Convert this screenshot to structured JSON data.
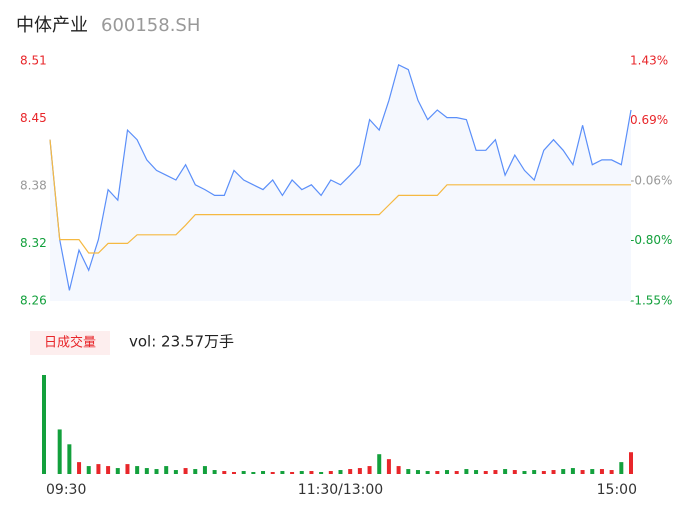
{
  "header": {
    "name": "中体产业",
    "code": "600158.SH"
  },
  "chart_data": [
    {
      "type": "line",
      "x": [
        0,
        4,
        8,
        12,
        16,
        20,
        24,
        28,
        32,
        36,
        40,
        44,
        48,
        52,
        56,
        60,
        64,
        68,
        72,
        76,
        80,
        84,
        88,
        92,
        96,
        100,
        104,
        108,
        112,
        116,
        120,
        124,
        128,
        132,
        136,
        140,
        144,
        148,
        152,
        156,
        160,
        164,
        168,
        172,
        176,
        180,
        184,
        188,
        192,
        196,
        200,
        204,
        208,
        212,
        216,
        220,
        224,
        228,
        232,
        236,
        240
      ],
      "xlim": [
        0,
        240
      ],
      "xticks": [
        {
          "value": 0,
          "label": "09:30"
        },
        {
          "value": 120,
          "label": "11:30/13:00"
        },
        {
          "value": 240,
          "label": "15:00"
        }
      ],
      "series": [
        {
          "name": "price",
          "color": "#5b8ff9",
          "values": [
            8.428,
            8.324,
            8.271,
            8.313,
            8.292,
            8.324,
            8.376,
            8.365,
            8.438,
            8.428,
            8.407,
            8.396,
            8.391,
            8.386,
            8.402,
            8.381,
            8.376,
            8.37,
            8.37,
            8.396,
            8.386,
            8.381,
            8.376,
            8.386,
            8.37,
            8.386,
            8.376,
            8.381,
            8.37,
            8.386,
            8.381,
            8.391,
            8.402,
            8.449,
            8.438,
            8.469,
            8.506,
            8.501,
            8.469,
            8.449,
            8.459,
            8.451,
            8.451,
            8.449,
            8.417,
            8.417,
            8.428,
            8.391,
            8.412,
            8.396,
            8.386,
            8.417,
            8.428,
            8.417,
            8.402,
            8.443,
            8.402,
            8.407,
            8.407,
            8.402,
            8.459
          ]
        },
        {
          "name": "average",
          "color": "#f5b942",
          "values": [
            8.428,
            8.324,
            8.324,
            8.324,
            8.31,
            8.31,
            8.32,
            8.32,
            8.32,
            8.329,
            8.329,
            8.329,
            8.329,
            8.329,
            8.339,
            8.35,
            8.35,
            8.35,
            8.35,
            8.35,
            8.35,
            8.35,
            8.35,
            8.35,
            8.35,
            8.35,
            8.35,
            8.35,
            8.35,
            8.35,
            8.35,
            8.35,
            8.35,
            8.35,
            8.35,
            8.36,
            8.37,
            8.37,
            8.37,
            8.37,
            8.37,
            8.381,
            8.381,
            8.381,
            8.381,
            8.381,
            8.381,
            8.381,
            8.381,
            8.381,
            8.381,
            8.381,
            8.381,
            8.381,
            8.381,
            8.381,
            8.381,
            8.381,
            8.381,
            8.381,
            8.381
          ]
        }
      ],
      "ylim": [
        8.26,
        8.51
      ],
      "yticks": [
        8.51,
        8.45,
        8.38,
        8.32,
        8.26
      ],
      "y2lim": [
        -1.55,
        1.43
      ],
      "y2ticks": [
        {
          "value": 1.43,
          "label": "1.43%"
        },
        {
          "value": 0.69,
          "label": "0.69%"
        },
        {
          "value": -0.06,
          "label": "-0.06%"
        },
        {
          "value": -0.8,
          "label": "-0.80%"
        },
        {
          "value": -1.55,
          "label": "-1.55%"
        }
      ],
      "ytick_colors": [
        "#e8262a",
        "#e8262a",
        "#999999",
        "#13a03c",
        "#13a03c"
      ],
      "area_fill": "#f5f8fe"
    },
    {
      "type": "bar",
      "title": "日成交量",
      "subtitle": "vol: 23.57万手",
      "values": [
        100,
        45,
        30,
        12,
        8,
        10,
        8,
        6,
        10,
        8,
        6,
        5,
        8,
        4,
        6,
        5,
        8,
        4,
        3,
        2,
        3,
        2,
        3,
        2,
        3,
        2,
        3,
        3,
        2,
        3,
        4,
        5,
        6,
        8,
        20,
        15,
        8,
        5,
        4,
        3,
        3,
        4,
        3,
        5,
        4,
        3,
        4,
        5,
        4,
        3,
        4,
        3,
        4,
        5,
        6,
        4,
        5,
        5,
        4,
        12,
        22
      ],
      "ylim": [
        0,
        100
      ],
      "up_color": "#e8262a",
      "down_color": "#13a03c"
    }
  ]
}
